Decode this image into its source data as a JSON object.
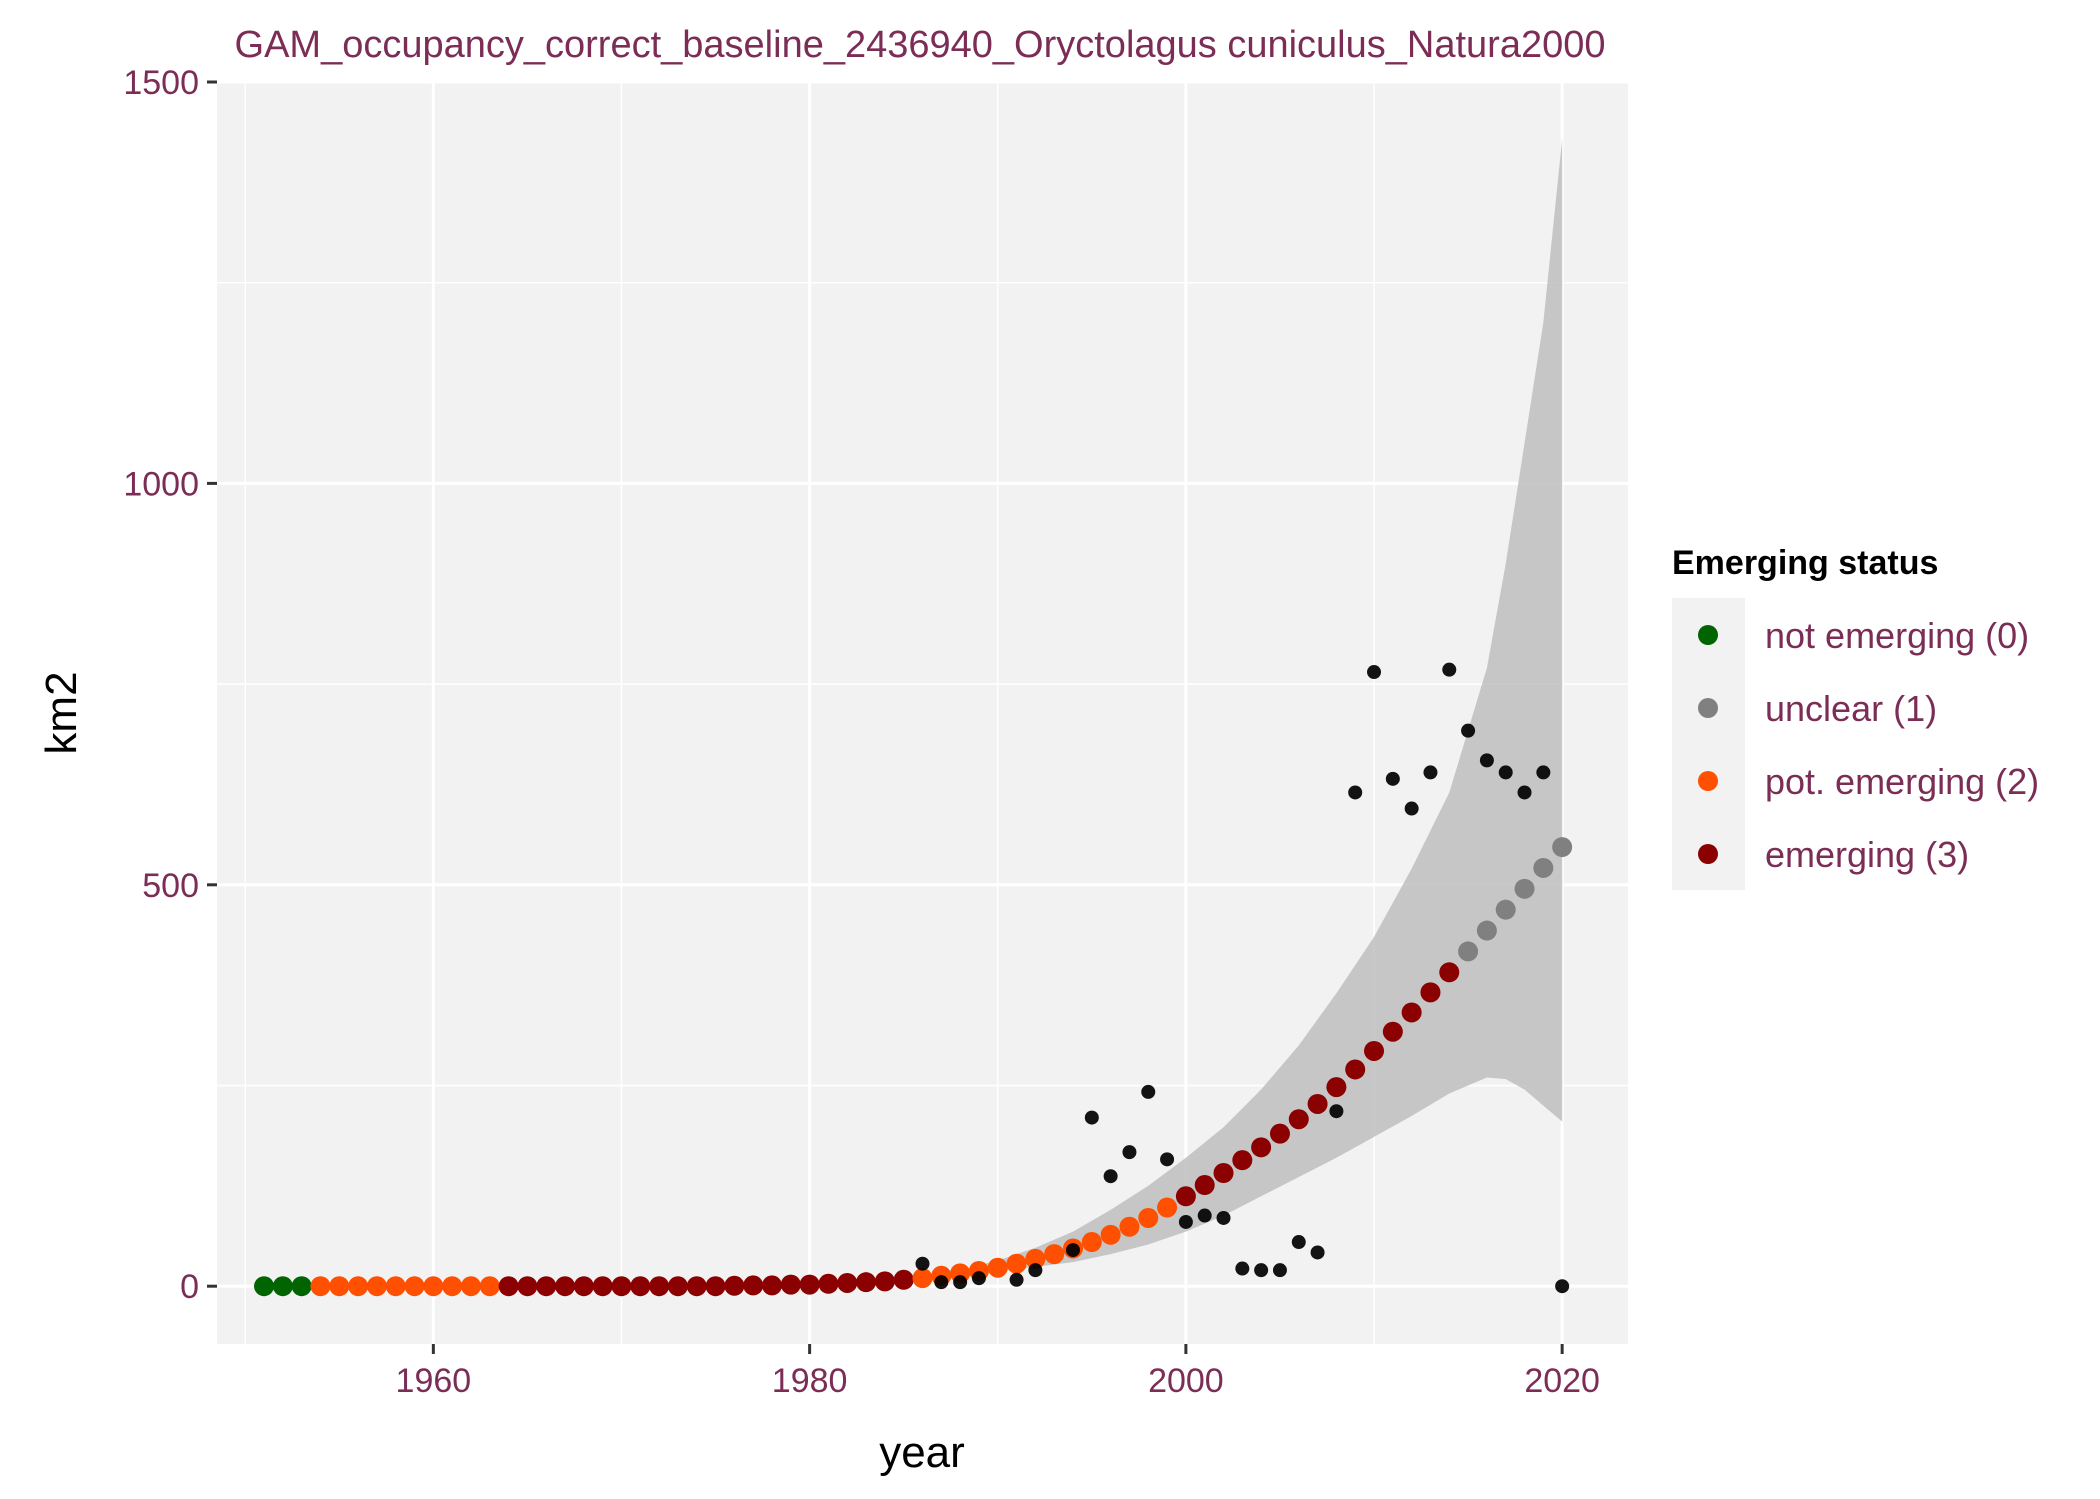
{
  "chart_data": {
    "type": "scatter",
    "title": "GAM_occupancy_correct_baseline_2436940_Oryctolagus cuniculus_Natura2000",
    "xlabel": "year",
    "ylabel": "km2",
    "xlim": [
      1948.5,
      2023.5
    ],
    "ylim": [
      -72,
      1500
    ],
    "x_ticks": [
      1960,
      1980,
      2000,
      2020
    ],
    "y_ticks": [
      0,
      500,
      1000,
      1500
    ],
    "x_tick_labels": [
      "1960",
      "1980",
      "2000",
      "2020"
    ],
    "y_tick_labels": [
      "0",
      "500",
      "1000",
      "1500"
    ],
    "grid": true,
    "legend": {
      "title": "Emerging status",
      "placement": "right",
      "entries": [
        {
          "label": "not emerging (0)",
          "color": "#006400"
        },
        {
          "label": "unclear (1)",
          "color": "#808080"
        },
        {
          "label": "pot. emerging (2)",
          "color": "#ff4f00"
        },
        {
          "label": "emerging (3)",
          "color": "#8b0000"
        }
      ]
    },
    "colors": {
      "not_emerging": "#006400",
      "unclear": "#808080",
      "pot_emerging": "#ff4f00",
      "emerging": "#8b0000",
      "observed": "#000000",
      "ribbon": "#bebebe",
      "panel": "#f2f2f2",
      "grid": "#ffffff"
    },
    "fit": {
      "x": [
        1951,
        1952,
        1953,
        1954,
        1955,
        1956,
        1957,
        1958,
        1959,
        1960,
        1961,
        1962,
        1963,
        1964,
        1965,
        1966,
        1967,
        1968,
        1969,
        1970,
        1971,
        1972,
        1973,
        1974,
        1975,
        1976,
        1977,
        1978,
        1979,
        1980,
        1981,
        1982,
        1983,
        1984,
        1985,
        1986,
        1987,
        1988,
        1989,
        1990,
        1991,
        1992,
        1993,
        1994,
        1995,
        1996,
        1997,
        1998,
        1999,
        2000,
        2001,
        2002,
        2003,
        2004,
        2005,
        2006,
        2007,
        2008,
        2009,
        2010,
        2011,
        2012,
        2013,
        2014,
        2015,
        2016,
        2017,
        2018,
        2019,
        2020
      ],
      "y": [
        0,
        0,
        0,
        0,
        0,
        0,
        0,
        0,
        0,
        0,
        0,
        0,
        0,
        0,
        0,
        0,
        0,
        0,
        0,
        0,
        0,
        0,
        0,
        0,
        0,
        0.5,
        1,
        1,
        2,
        2,
        3,
        4,
        5,
        6,
        8,
        10,
        13,
        16,
        19,
        23,
        28,
        34,
        40,
        47,
        55,
        64,
        74,
        85,
        98,
        112,
        126,
        141,
        157,
        173,
        190,
        208,
        227,
        248,
        270,
        293,
        317,
        341,
        366,
        391,
        417,
        443,
        469,
        495,
        521,
        547
      ],
      "status": [
        0,
        0,
        0,
        2,
        2,
        2,
        2,
        2,
        2,
        2,
        2,
        2,
        2,
        3,
        3,
        3,
        3,
        3,
        3,
        3,
        3,
        3,
        3,
        3,
        3,
        3,
        3,
        3,
        3,
        3,
        3,
        3,
        3,
        3,
        3,
        2,
        2,
        2,
        2,
        2,
        2,
        2,
        2,
        2,
        2,
        2,
        2,
        2,
        2,
        3,
        3,
        3,
        3,
        3,
        3,
        3,
        3,
        3,
        3,
        3,
        3,
        3,
        3,
        3,
        1,
        1,
        1,
        1,
        1,
        1
      ]
    },
    "confidence_band": {
      "x": [
        1986,
        1988,
        1990,
        1992,
        1994,
        1996,
        1998,
        2000,
        2002,
        2004,
        2006,
        2008,
        2010,
        2012,
        2014,
        2016,
        2017,
        2018,
        2019,
        2020
      ],
      "lower": [
        8,
        12,
        18,
        24,
        30,
        40,
        52,
        68,
        88,
        112,
        136,
        160,
        186,
        212,
        240,
        260,
        258,
        245,
        225,
        205
      ],
      "upper": [
        12,
        20,
        32,
        48,
        68,
        95,
        125,
        160,
        198,
        245,
        300,
        365,
        435,
        520,
        615,
        770,
        900,
        1050,
        1200,
        1430
      ]
    },
    "observed": {
      "x": [
        1986,
        1987,
        1988,
        1989,
        1991,
        1992,
        1994,
        1995,
        1996,
        1997,
        1998,
        1999,
        2000,
        2001,
        2002,
        2003,
        2004,
        2005,
        2006,
        2007,
        2008,
        2009,
        2010,
        2011,
        2012,
        2013,
        2014,
        2015,
        2016,
        2017,
        2018,
        2019,
        2020
      ],
      "y": [
        28,
        5,
        5,
        10,
        8,
        20,
        45,
        210,
        137,
        167,
        242,
        158,
        80,
        88,
        85,
        22,
        20,
        20,
        55,
        42,
        218,
        615,
        765,
        632,
        595,
        640,
        768,
        692,
        655,
        640,
        615,
        640,
        0
      ]
    }
  }
}
